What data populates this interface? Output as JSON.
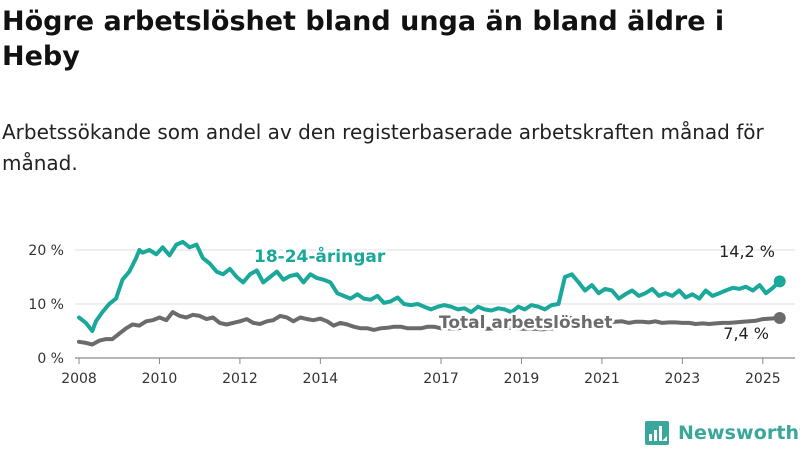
{
  "title": "Högre arbetslöshet bland unga än bland äldre i Heby",
  "subtitle": "Arbetssökande som andel av den registerbaserade arbetskraften månad för månad.",
  "brand": {
    "name": "Newsworthy",
    "logo_icon": "bar-chart-logo-icon",
    "color": "#3aa79b"
  },
  "chart_data": {
    "type": "line",
    "title": "Högre arbetslöshet bland unga än bland äldre i Heby",
    "subtitle": "Arbetssökande som andel av den registerbaserade arbetskraften månad för månad.",
    "xlabel": "",
    "ylabel": "",
    "ylim": [
      0,
      25
    ],
    "xlim": [
      2007.9,
      2025.8
    ],
    "x_ticks": [
      2008,
      2010,
      2012,
      2014,
      2017,
      2019,
      2021,
      2023,
      2025
    ],
    "x_tick_labels": [
      "2008",
      "2010",
      "2012",
      "2014",
      "2017",
      "2019",
      "2021",
      "2023",
      "2025"
    ],
    "y_ticks": [
      0,
      10,
      20
    ],
    "y_tick_labels": [
      "0 %",
      "10 %",
      "20 %"
    ],
    "grid": true,
    "legend": "inline labels",
    "series": [
      {
        "name": "18-24-åringar",
        "color": "#1aa89a",
        "end_label": "14,2 %",
        "x": [
          2008.0,
          2008.17,
          2008.33,
          2008.42,
          2008.58,
          2008.75,
          2008.92,
          2009.08,
          2009.25,
          2009.42,
          2009.5,
          2009.58,
          2009.75,
          2009.92,
          2010.08,
          2010.25,
          2010.42,
          2010.58,
          2010.75,
          2010.92,
          2011.08,
          2011.25,
          2011.42,
          2011.58,
          2011.75,
          2011.92,
          2012.08,
          2012.25,
          2012.42,
          2012.58,
          2012.75,
          2012.92,
          2013.08,
          2013.25,
          2013.42,
          2013.58,
          2013.75,
          2013.92,
          2014.08,
          2014.25,
          2014.42,
          2014.58,
          2014.75,
          2014.92,
          2015.08,
          2015.25,
          2015.42,
          2015.58,
          2015.75,
          2015.92,
          2016.08,
          2016.25,
          2016.42,
          2016.58,
          2016.75,
          2016.92,
          2017.08,
          2017.25,
          2017.42,
          2017.58,
          2017.75,
          2017.92,
          2018.08,
          2018.25,
          2018.42,
          2018.58,
          2018.75,
          2018.92,
          2019.08,
          2019.25,
          2019.42,
          2019.58,
          2019.75,
          2019.92,
          2020.08,
          2020.25,
          2020.42,
          2020.58,
          2020.75,
          2020.92,
          2021.08,
          2021.25,
          2021.42,
          2021.58,
          2021.75,
          2021.92,
          2022.08,
          2022.25,
          2022.42,
          2022.58,
          2022.75,
          2022.92,
          2023.08,
          2023.25,
          2023.42,
          2023.58,
          2023.75,
          2023.92,
          2024.08,
          2024.25,
          2024.42,
          2024.58,
          2024.75,
          2024.92,
          2025.08,
          2025.25,
          2025.42
        ],
        "values": [
          7.5,
          6.5,
          5.0,
          6.8,
          8.5,
          10.0,
          11.0,
          14.5,
          16.0,
          18.5,
          20.0,
          19.5,
          20.0,
          19.2,
          20.5,
          19.0,
          21.0,
          21.5,
          20.5,
          21.0,
          18.5,
          17.5,
          16.0,
          15.5,
          16.5,
          15.0,
          14.0,
          15.5,
          16.2,
          14.0,
          15.0,
          16.0,
          14.5,
          15.2,
          15.5,
          14.0,
          15.5,
          14.8,
          14.5,
          14.0,
          12.0,
          11.5,
          11.0,
          11.8,
          11.0,
          10.8,
          11.5,
          10.2,
          10.5,
          11.2,
          10.0,
          9.8,
          10.0,
          9.5,
          9.0,
          9.5,
          9.8,
          9.5,
          9.0,
          9.2,
          8.5,
          9.5,
          9.0,
          8.8,
          9.2,
          9.0,
          8.5,
          9.5,
          9.0,
          9.8,
          9.5,
          9.0,
          9.8,
          10.0,
          15.0,
          15.5,
          14.0,
          12.5,
          13.5,
          12.0,
          12.8,
          12.5,
          11.0,
          11.8,
          12.5,
          11.5,
          12.0,
          12.8,
          11.5,
          12.0,
          11.5,
          12.5,
          11.2,
          11.8,
          11.0,
          12.5,
          11.5,
          12.0,
          12.5,
          13.0,
          12.8,
          13.2,
          12.5,
          13.5,
          12.0,
          13.0,
          14.2
        ]
      },
      {
        "name": "Total arbetslöshet",
        "color": "#6b6b6b",
        "end_label": "7,4 %",
        "x": [
          2008.0,
          2008.17,
          2008.33,
          2008.5,
          2008.67,
          2008.83,
          2009.0,
          2009.17,
          2009.33,
          2009.5,
          2009.67,
          2009.83,
          2010.0,
          2010.17,
          2010.33,
          2010.5,
          2010.67,
          2010.83,
          2011.0,
          2011.17,
          2011.33,
          2011.5,
          2011.67,
          2011.83,
          2012.0,
          2012.17,
          2012.33,
          2012.5,
          2012.67,
          2012.83,
          2013.0,
          2013.17,
          2013.33,
          2013.5,
          2013.67,
          2013.83,
          2014.0,
          2014.17,
          2014.33,
          2014.5,
          2014.67,
          2014.83,
          2015.0,
          2015.17,
          2015.33,
          2015.5,
          2015.67,
          2015.83,
          2016.0,
          2016.17,
          2016.33,
          2016.5,
          2016.67,
          2016.83,
          2017.0,
          2017.17,
          2017.33,
          2017.5,
          2017.67,
          2017.83,
          2018.0,
          2018.17,
          2018.33,
          2018.5,
          2018.67,
          2018.83,
          2019.0,
          2019.17,
          2019.33,
          2019.5,
          2019.67,
          2019.83,
          2020.0,
          2020.17,
          2020.33,
          2020.5,
          2020.67,
          2020.83,
          2021.0,
          2021.17,
          2021.33,
          2021.5,
          2021.67,
          2021.83,
          2022.0,
          2022.17,
          2022.33,
          2022.5,
          2022.67,
          2022.83,
          2023.0,
          2023.17,
          2023.33,
          2023.5,
          2023.67,
          2023.83,
          2024.0,
          2024.17,
          2024.33,
          2024.5,
          2024.67,
          2024.83,
          2025.0,
          2025.17,
          2025.42
        ],
        "values": [
          3.0,
          2.8,
          2.5,
          3.2,
          3.5,
          3.5,
          4.5,
          5.5,
          6.2,
          6.0,
          6.8,
          7.0,
          7.5,
          7.0,
          8.5,
          7.8,
          7.5,
          8.0,
          7.8,
          7.2,
          7.5,
          6.5,
          6.2,
          6.5,
          6.8,
          7.2,
          6.5,
          6.3,
          6.8,
          7.0,
          7.8,
          7.5,
          6.8,
          7.5,
          7.2,
          7.0,
          7.3,
          6.8,
          6.0,
          6.5,
          6.2,
          5.8,
          5.5,
          5.5,
          5.2,
          5.5,
          5.6,
          5.8,
          5.8,
          5.5,
          5.5,
          5.5,
          5.8,
          5.8,
          5.5,
          5.5,
          5.4,
          5.6,
          5.6,
          5.8,
          5.5,
          5.4,
          5.5,
          5.5,
          5.6,
          5.5,
          5.4,
          5.4,
          5.4,
          5.3,
          5.4,
          5.5,
          6.0,
          7.5,
          7.2,
          6.8,
          6.8,
          6.6,
          6.7,
          6.6,
          6.7,
          6.8,
          6.5,
          6.7,
          6.7,
          6.6,
          6.8,
          6.5,
          6.6,
          6.6,
          6.5,
          6.5,
          6.3,
          6.4,
          6.3,
          6.4,
          6.5,
          6.5,
          6.6,
          6.7,
          6.8,
          6.9,
          7.2,
          7.3,
          7.4
        ]
      }
    ]
  }
}
